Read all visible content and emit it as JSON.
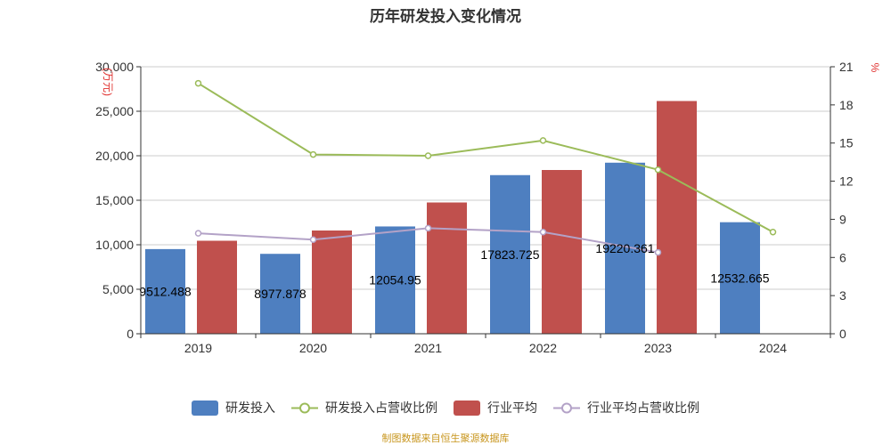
{
  "chart_data": {
    "type": "bar",
    "title": "历年研发投入变化情况",
    "categories": [
      "2019",
      "2020",
      "2021",
      "2022",
      "2023",
      "2024"
    ],
    "left_axis": {
      "unit_label": "(万元)",
      "ylim": [
        0,
        30000
      ],
      "ticks": [
        "0",
        "5,000",
        "10,000",
        "15,000",
        "20,000",
        "25,000",
        "30,000"
      ],
      "tick_values": [
        0,
        5000,
        10000,
        15000,
        20000,
        25000,
        30000
      ]
    },
    "right_axis": {
      "unit_label": "%",
      "ylim": [
        0,
        21
      ],
      "ticks": [
        "0",
        "3",
        "6",
        "9",
        "12",
        "15",
        "18",
        "21"
      ],
      "tick_values": [
        0,
        3,
        6,
        9,
        12,
        15,
        18,
        21
      ]
    },
    "series": [
      {
        "name": "研发投入",
        "kind": "bar",
        "axis": "left",
        "color": "#4e7fc0",
        "values": [
          9512.488,
          8977.878,
          12054.95,
          17823.725,
          19220.361,
          12532.665
        ],
        "labels": [
          "9512.488",
          "8977.878",
          "12054.95",
          "17823.725",
          "19220.361",
          "12532.665"
        ]
      },
      {
        "name": "研发投入占营收比例",
        "kind": "line",
        "axis": "right",
        "color": "#9bbb59",
        "values": [
          19.7,
          14.1,
          14.0,
          15.2,
          12.9,
          8.0
        ]
      },
      {
        "name": "行业平均",
        "kind": "bar",
        "axis": "left",
        "color": "#c0504d",
        "values": [
          10450,
          11600,
          14750,
          18400,
          26150,
          null
        ]
      },
      {
        "name": "行业平均占营收比例",
        "kind": "line",
        "axis": "right",
        "color": "#b3a2c7",
        "values": [
          7.9,
          7.4,
          8.3,
          8.0,
          6.4,
          null
        ]
      }
    ],
    "grid": true,
    "legend_position": "bottom"
  },
  "footer_note": "制图数据来自恒生聚源数据库"
}
